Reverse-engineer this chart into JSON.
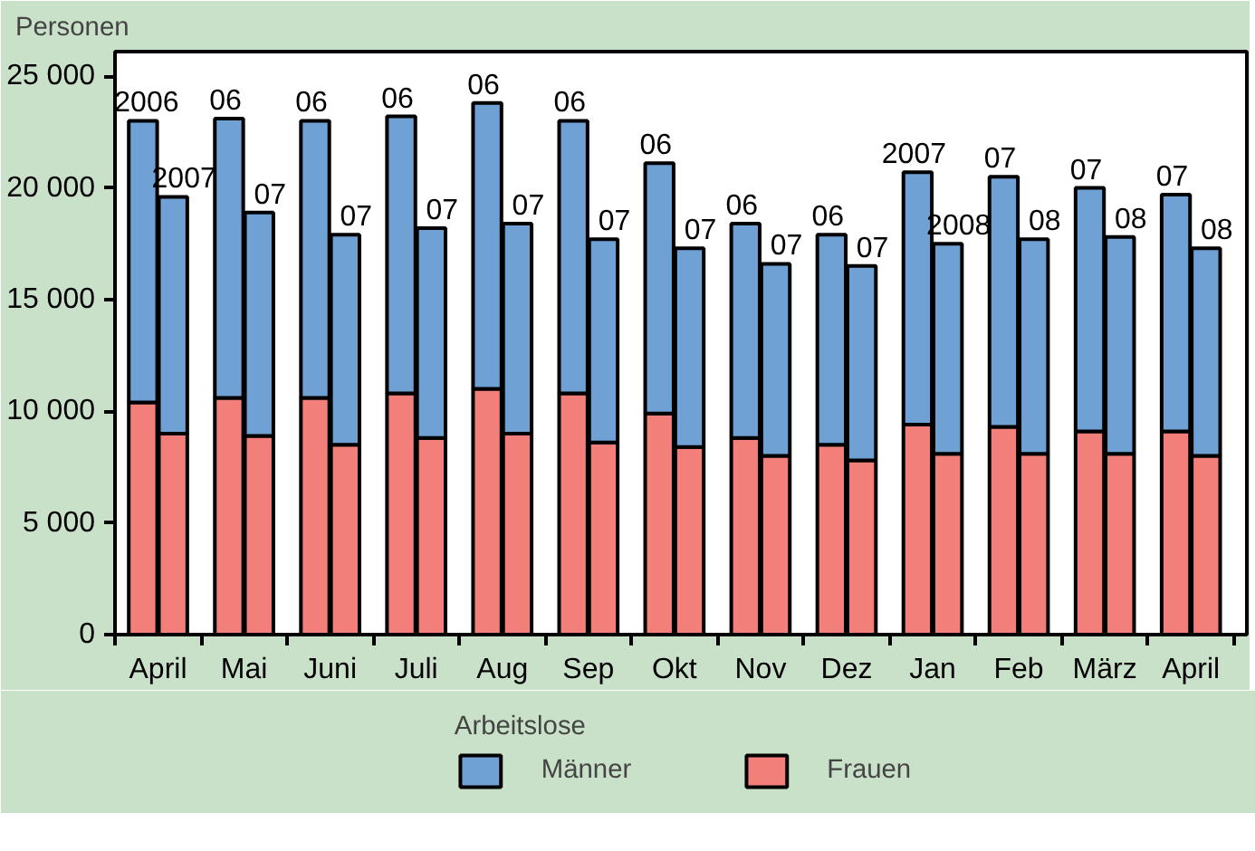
{
  "chart_data": {
    "type": "bar",
    "stacked": true,
    "ylabel": "Personen",
    "legend_title": "Arbeitslose",
    "legend": "bottom",
    "grid": false,
    "categories": [
      "2006",
      "2007",
      "06",
      "07",
      "06",
      "07",
      "06",
      "07",
      "06",
      "07",
      "06",
      "07",
      "06",
      "07",
      "06",
      "07",
      "06",
      "07",
      "2007",
      "2008",
      "07",
      "08",
      "07",
      "08",
      "07",
      "08"
    ],
    "annotations": [
      "April",
      "Mai",
      "Juni",
      "Juli",
      "Aug",
      "Sep",
      "Okt",
      "Nov",
      "Dez",
      "Jan",
      "Feb",
      "März",
      "April"
    ],
    "ylim": [
      0,
      26100
    ],
    "yticks": [
      {
        "value": 0,
        "label": "0"
      },
      {
        "value": 5000,
        "label": "5 000"
      },
      {
        "value": 10000,
        "label": "10 000"
      },
      {
        "value": 15000,
        "label": "15 000"
      },
      {
        "value": 20000,
        "label": "20 000"
      },
      {
        "value": 25000,
        "label": "25 000"
      }
    ],
    "series": [
      {
        "name": "Frauen",
        "color": "#f37f7a",
        "values": [
          10400,
          9000,
          10600,
          8900,
          10600,
          8500,
          10800,
          8800,
          11000,
          9000,
          10800,
          8600,
          9900,
          8400,
          8800,
          8000,
          8500,
          7800,
          9400,
          8100,
          9300,
          8100,
          9100,
          8100,
          9100,
          8000
        ]
      },
      {
        "name": "Männer",
        "color": "#6fa1d4",
        "values": [
          12600,
          10600,
          12500,
          10000,
          12400,
          9400,
          12400,
          9400,
          12800,
          9400,
          12200,
          9100,
          11200,
          8900,
          9600,
          8600,
          9400,
          8700,
          11300,
          9400,
          11200,
          9600,
          10900,
          9700,
          10600,
          9300
        ]
      }
    ]
  }
}
